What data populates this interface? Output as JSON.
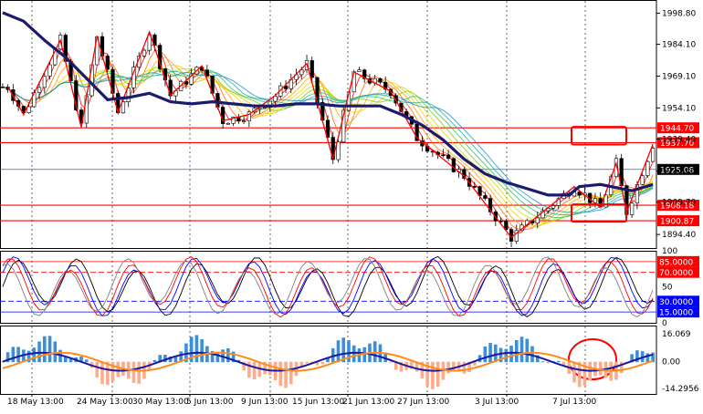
{
  "chart_data": [
    {
      "type": "candlestick",
      "panel": "price",
      "x_ticks": [
        "18 May 13:00",
        "24 May 13:00",
        "30 May 13:00",
        "5 Jun 13:00",
        "9 Jun 13:00",
        "15 Jun 13:00",
        "21 Jun 13:00",
        "27 Jun 13:00",
        "3 Jul 13:00",
        "7 Jul 13:00"
      ],
      "y_ticks": [
        "1998.80",
        "1984.10",
        "1969.10",
        "1954.10",
        "1939.40",
        "1924.40",
        "1909.70",
        "1894.40"
      ],
      "ylim": [
        1888,
        2005
      ],
      "horizontal_levels": [
        {
          "value": 1944.7,
          "label": "1944.70",
          "color": "#ff0000"
        },
        {
          "value": 1937.7,
          "label": "1937.70",
          "color": "#ff0000"
        },
        {
          "value": 1908.18,
          "label": "1908.18",
          "color": "#ff0000"
        },
        {
          "value": 1900.87,
          "label": "1900.87",
          "color": "#ff0000"
        },
        {
          "value": 1925.08,
          "label": "1925.08",
          "color": "#000000"
        }
      ],
      "zigzag": [
        [
          1,
          1964
        ],
        [
          4,
          1951
        ],
        [
          11,
          1986
        ],
        [
          15,
          1945
        ],
        [
          18,
          1988
        ],
        [
          22,
          1952
        ],
        [
          28,
          1990
        ],
        [
          32,
          1960
        ],
        [
          38,
          1974
        ],
        [
          42,
          1948
        ],
        [
          47,
          1951
        ],
        [
          52,
          1960
        ],
        [
          58,
          1975
        ],
        [
          63,
          1930
        ],
        [
          67,
          1971
        ],
        [
          74,
          1962
        ],
        [
          79,
          1940
        ],
        [
          88,
          1922
        ],
        [
          97,
          1893
        ],
        [
          109,
          1917
        ],
        [
          114,
          1907
        ],
        [
          117,
          1928
        ],
        [
          119,
          1905
        ],
        [
          124,
          1937
        ]
      ],
      "ma_long": [
        [
          0,
          1999
        ],
        [
          4,
          1995
        ],
        [
          8,
          1986
        ],
        [
          12,
          1978
        ],
        [
          16,
          1968
        ],
        [
          20,
          1958
        ],
        [
          24,
          1959
        ],
        [
          28,
          1961
        ],
        [
          32,
          1957
        ],
        [
          36,
          1956
        ],
        [
          40,
          1957
        ],
        [
          44,
          1956
        ],
        [
          48,
          1955
        ],
        [
          52,
          1955
        ],
        [
          56,
          1956
        ],
        [
          60,
          1956
        ],
        [
          64,
          1955
        ],
        [
          68,
          1955
        ],
        [
          72,
          1955
        ],
        [
          76,
          1951
        ],
        [
          80,
          1946
        ],
        [
          84,
          1939
        ],
        [
          88,
          1930
        ],
        [
          92,
          1923
        ],
        [
          96,
          1919
        ],
        [
          100,
          1916
        ],
        [
          104,
          1913
        ],
        [
          108,
          1913
        ],
        [
          110,
          1917
        ],
        [
          114,
          1918
        ],
        [
          118,
          1916
        ],
        [
          120,
          1915
        ],
        [
          124,
          1918
        ]
      ]
    },
    {
      "type": "line",
      "panel": "stochastic",
      "levels": [
        {
          "value": 85,
          "label": "85.0000",
          "color": "#ff0000"
        },
        {
          "value": 70,
          "label": "70.0000",
          "color": "#ff0000"
        },
        {
          "value": 30,
          "label": "30.0000",
          "color": "#0000ff"
        },
        {
          "value": 15,
          "label": "15.0000",
          "color": "#0000ff"
        }
      ],
      "y_ticks": [
        "100",
        "50",
        "0"
      ],
      "ylim": [
        0,
        100
      ]
    },
    {
      "type": "bar",
      "panel": "macd",
      "y_ticks": [
        "16.069",
        "0.00",
        "-14.2956"
      ],
      "ylim": [
        -14.2956,
        16.069
      ]
    }
  ]
}
